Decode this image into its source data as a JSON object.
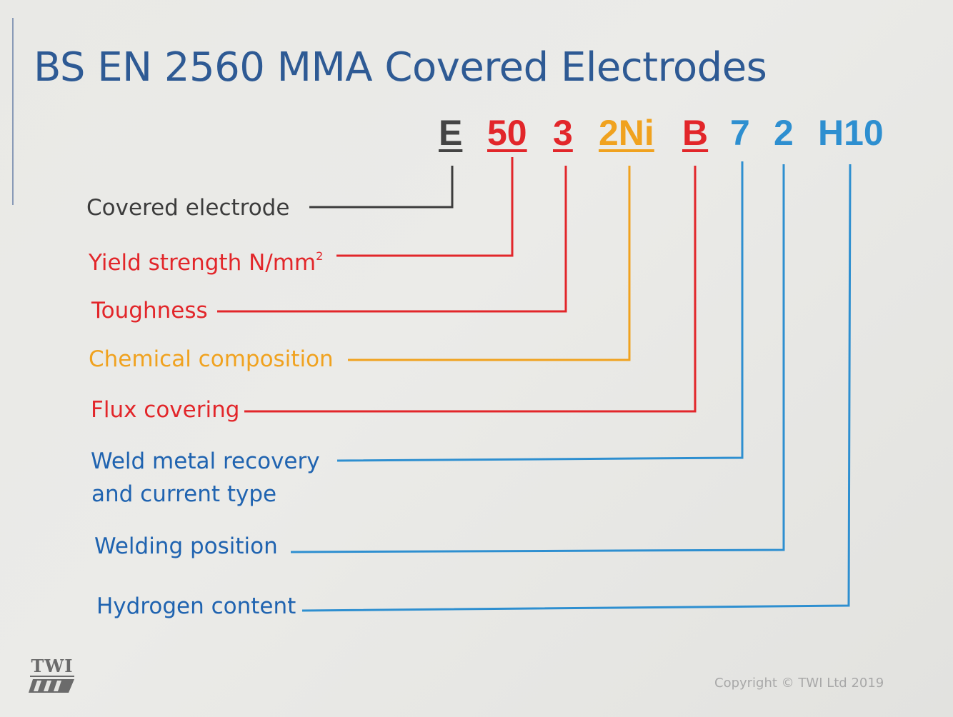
{
  "slide": {
    "title": "BS EN 2560 MMA Covered Electrodes",
    "copyright": "Copyright © TWI Ltd 2019",
    "logo_text": "TWI"
  },
  "designation": [
    {
      "text": "E",
      "color": "#444444",
      "underlined": true
    },
    {
      "text": "50",
      "color": "#e2262a",
      "underlined": true
    },
    {
      "text": "3",
      "color": "#e2262a",
      "underlined": true
    },
    {
      "text": "2Ni",
      "color": "#f0a21f",
      "underlined": true
    },
    {
      "text": "B",
      "color": "#e2262a",
      "underlined": true
    },
    {
      "text": "7",
      "color": "#2e8fd0",
      "underlined": false
    },
    {
      "text": "2",
      "color": "#2e8fd0",
      "underlined": false
    },
    {
      "text": "H10",
      "color": "#2e8fd0",
      "underlined": false
    }
  ],
  "labels": [
    {
      "text": "Covered electrode",
      "color": "#3c3c3c"
    },
    {
      "text": "Yield strength N/mm",
      "sup": "2",
      "color": "#e2262a"
    },
    {
      "text": "Toughness",
      "color": "#e2262a"
    },
    {
      "text": "Chemical composition",
      "color": "#f0a21f"
    },
    {
      "text": "Flux covering",
      "color": "#e2262a"
    },
    {
      "text": "Weld metal recovery",
      "line2": "and current type",
      "color": "#1f63b0"
    },
    {
      "text": "Welding position",
      "color": "#1f63b0"
    },
    {
      "text": "Hydrogen content",
      "color": "#1f63b0"
    }
  ],
  "colors": {
    "title": "#2e5a94",
    "black_line": "#3c3c3c",
    "red_line": "#e2262a",
    "orange_line": "#f0a21f",
    "blue_line": "#2e8fd0"
  }
}
